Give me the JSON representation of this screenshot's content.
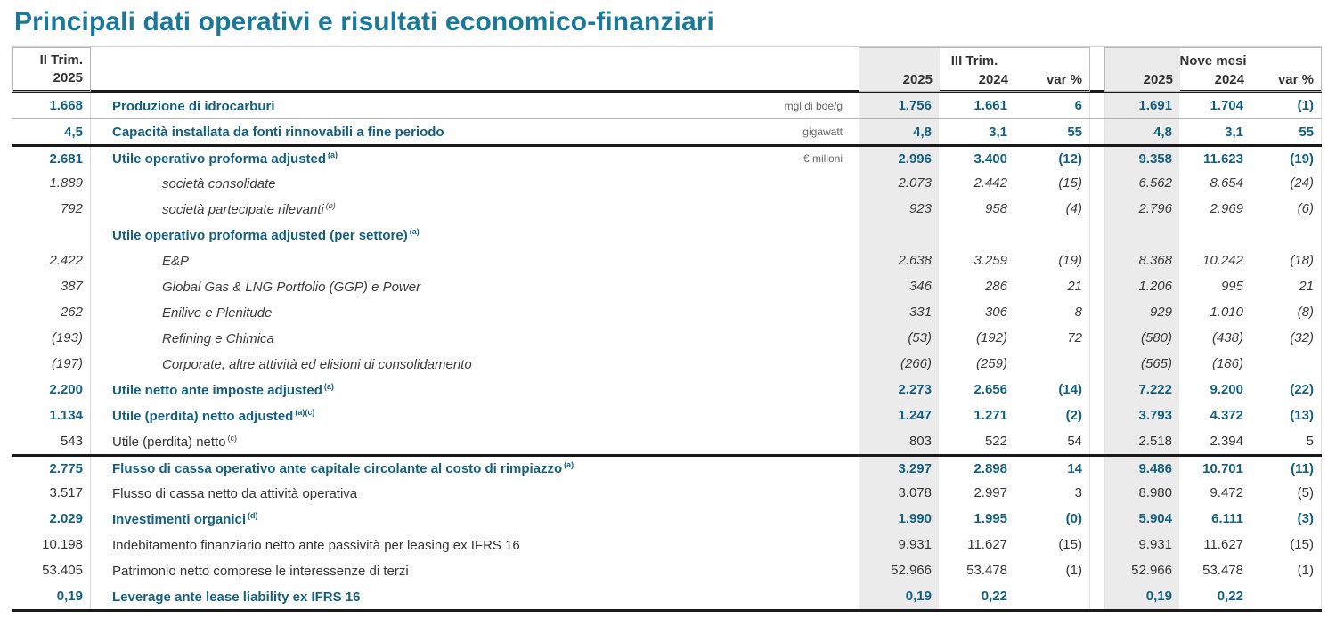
{
  "colors": {
    "title": "#1A7898",
    "accent": "#135F7F",
    "band": "#EBEBEB",
    "text": "#333333",
    "rule": "#1A1A1A"
  },
  "title": "Principali dati operativi e risultati economico-finanziari",
  "header": {
    "left": {
      "line1": "II Trim.",
      "line2": "2025"
    },
    "q3": {
      "title": "III Trim.",
      "cols": [
        "2025",
        "2024",
        "var %"
      ]
    },
    "nine": {
      "title": "Nove mesi",
      "cols": [
        "2025",
        "2024",
        "var %"
      ]
    }
  },
  "table": {
    "rows": [
      {
        "q2": "1.668",
        "label": "Produzione di idrocarburi",
        "note": "",
        "unit": "mgl di boe/g",
        "t25": "1.756",
        "t24": "1.661",
        "tvar": "6",
        "n25": "1.691",
        "n24": "1.704",
        "nvar": "(1)",
        "style": "bold",
        "indent": false,
        "border_top": "none"
      },
      {
        "q2": "4,5",
        "label": "Capacità installata da fonti rinnovabili a fine periodo",
        "note": "",
        "unit": "gigawatt",
        "t25": "4,8",
        "t24": "3,1",
        "tvar": "55",
        "n25": "4,8",
        "n24": "3,1",
        "nvar": "55",
        "style": "bold",
        "indent": false,
        "border_top": "thin"
      },
      {
        "q2": "2.681",
        "label": "Utile operativo proforma adjusted",
        "note": "(a)",
        "unit": "€ milioni",
        "t25": "2.996",
        "t24": "3.400",
        "tvar": "(12)",
        "n25": "9.358",
        "n24": "11.623",
        "nvar": "(19)",
        "style": "bold",
        "indent": false,
        "border_top": "thick"
      },
      {
        "q2": "1.889",
        "label": "società consolidate",
        "note": "",
        "unit": "",
        "t25": "2.073",
        "t24": "2.442",
        "tvar": "(15)",
        "n25": "6.562",
        "n24": "8.654",
        "nvar": "(24)",
        "style": "italic",
        "indent": true,
        "border_top": "none"
      },
      {
        "q2": "792",
        "label": "società partecipate rilevanti",
        "note": "(b)",
        "unit": "",
        "t25": "923",
        "t24": "958",
        "tvar": "(4)",
        "n25": "2.796",
        "n24": "2.969",
        "nvar": "(6)",
        "style": "italic",
        "indent": true,
        "border_top": "none"
      },
      {
        "q2": "",
        "label": "Utile operativo proforma adjusted (per settore)",
        "note": "(a)",
        "unit": "",
        "t25": "",
        "t24": "",
        "tvar": "",
        "n25": "",
        "n24": "",
        "nvar": "",
        "style": "bold",
        "indent": false,
        "border_top": "none"
      },
      {
        "q2": "2.422",
        "label": "E&P",
        "note": "",
        "unit": "",
        "t25": "2.638",
        "t24": "3.259",
        "tvar": "(19)",
        "n25": "8.368",
        "n24": "10.242",
        "nvar": "(18)",
        "style": "italic",
        "indent": true,
        "border_top": "none"
      },
      {
        "q2": "387",
        "label": "Global Gas & LNG Portfolio (GGP) e Power",
        "note": "",
        "unit": "",
        "t25": "346",
        "t24": "286",
        "tvar": "21",
        "n25": "1.206",
        "n24": "995",
        "nvar": "21",
        "style": "italic",
        "indent": true,
        "border_top": "none"
      },
      {
        "q2": "262",
        "label": "Enilive e Plenitude",
        "note": "",
        "unit": "",
        "t25": "331",
        "t24": "306",
        "tvar": "8",
        "n25": "929",
        "n24": "1.010",
        "nvar": "(8)",
        "style": "italic",
        "indent": true,
        "border_top": "none"
      },
      {
        "q2": "(193)",
        "label": "Refining e Chimica",
        "note": "",
        "unit": "",
        "t25": "(53)",
        "t24": "(192)",
        "tvar": "72",
        "n25": "(580)",
        "n24": "(438)",
        "nvar": "(32)",
        "style": "italic",
        "indent": true,
        "border_top": "none"
      },
      {
        "q2": "(197)",
        "label": "Corporate, altre attività ed elisioni di consolidamento",
        "note": "",
        "unit": "",
        "t25": "(266)",
        "t24": "(259)",
        "tvar": "",
        "n25": "(565)",
        "n24": "(186)",
        "nvar": "",
        "style": "italic",
        "indent": true,
        "border_top": "none"
      },
      {
        "q2": "2.200",
        "label": "Utile netto ante imposte adjusted",
        "note": "(a)",
        "unit": "",
        "t25": "2.273",
        "t24": "2.656",
        "tvar": "(14)",
        "n25": "7.222",
        "n24": "9.200",
        "nvar": "(22)",
        "style": "bold",
        "indent": false,
        "border_top": "none"
      },
      {
        "q2": "1.134",
        "label": "Utile (perdita) netto adjusted",
        "note": "(a)(c)",
        "unit": "",
        "t25": "1.247",
        "t24": "1.271",
        "tvar": "(2)",
        "n25": "3.793",
        "n24": "4.372",
        "nvar": "(13)",
        "style": "bold",
        "indent": false,
        "border_top": "none"
      },
      {
        "q2": "543",
        "label": "Utile (perdita) netto",
        "note": "(c)",
        "unit": "",
        "t25": "803",
        "t24": "522",
        "tvar": "54",
        "n25": "2.518",
        "n24": "2.394",
        "nvar": "5",
        "style": "regular",
        "indent": false,
        "border_top": "none"
      },
      {
        "q2": "2.775",
        "label": "Flusso di cassa operativo ante capitale circolante al costo di rimpiazzo",
        "note": "(a)",
        "unit": "",
        "t25": "3.297",
        "t24": "2.898",
        "tvar": "14",
        "n25": "9.486",
        "n24": "10.701",
        "nvar": "(11)",
        "style": "bold",
        "indent": false,
        "border_top": "thick"
      },
      {
        "q2": "3.517",
        "label": "Flusso di cassa netto da attività operativa",
        "note": "",
        "unit": "",
        "t25": "3.078",
        "t24": "2.997",
        "tvar": "3",
        "n25": "8.980",
        "n24": "9.472",
        "nvar": "(5)",
        "style": "regular",
        "indent": false,
        "border_top": "none"
      },
      {
        "q2": "2.029",
        "label": "Investimenti organici",
        "note": "(d)",
        "unit": "",
        "t25": "1.990",
        "t24": "1.995",
        "tvar": "(0)",
        "n25": "5.904",
        "n24": "6.111",
        "nvar": "(3)",
        "style": "bold",
        "indent": false,
        "border_top": "none"
      },
      {
        "q2": "10.198",
        "label": "Indebitamento finanziario netto ante passività per leasing ex IFRS 16",
        "note": "",
        "unit": "",
        "t25": "9.931",
        "t24": "11.627",
        "tvar": "(15)",
        "n25": "9.931",
        "n24": "11.627",
        "nvar": "(15)",
        "style": "regular",
        "indent": false,
        "border_top": "none"
      },
      {
        "q2": "53.405",
        "label": "Patrimonio netto comprese le interessenze di terzi",
        "note": "",
        "unit": "",
        "t25": "52.966",
        "t24": "53.478",
        "tvar": "(1)",
        "n25": "52.966",
        "n24": "53.478",
        "nvar": "(1)",
        "style": "regular",
        "indent": false,
        "border_top": "none"
      },
      {
        "q2": "0,19",
        "label": "Leverage ante lease liability ex IFRS 16",
        "note": "",
        "unit": "",
        "t25": "0,19",
        "t24": "0,22",
        "tvar": "",
        "n25": "0,19",
        "n24": "0,22",
        "nvar": "",
        "style": "bold",
        "indent": false,
        "border_top": "none"
      }
    ]
  }
}
